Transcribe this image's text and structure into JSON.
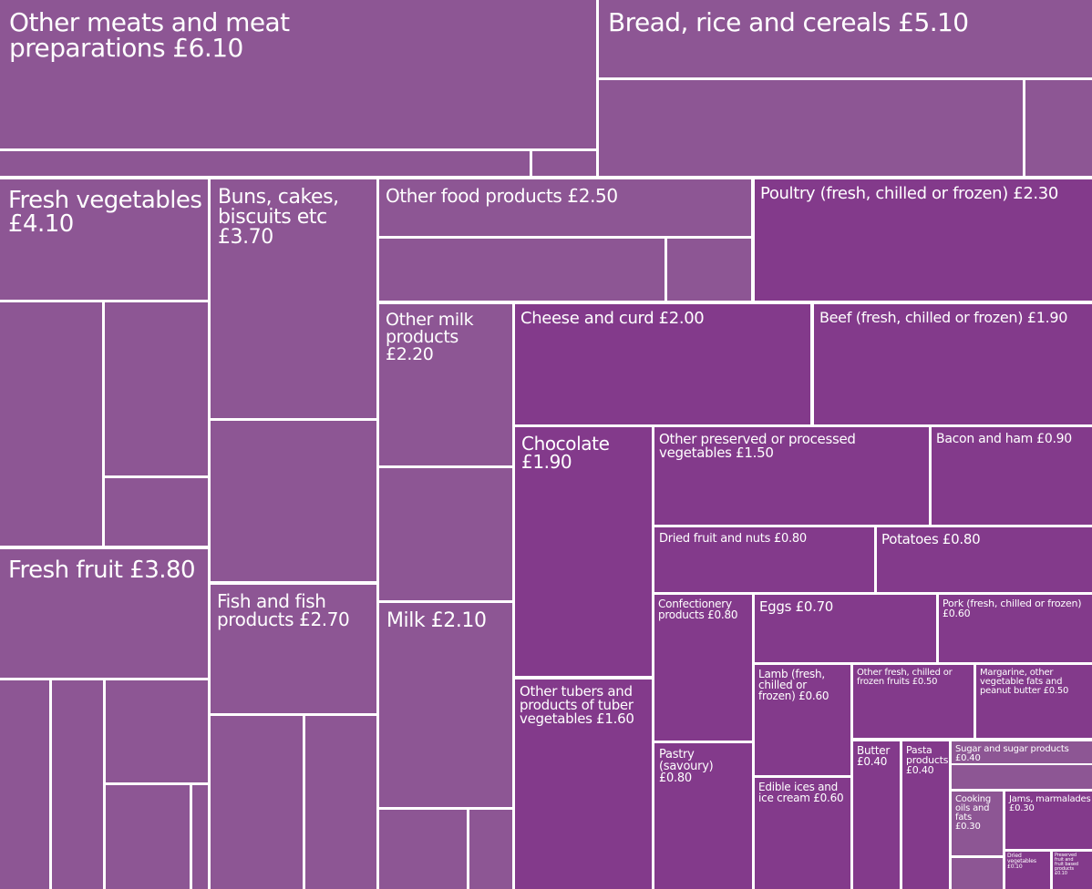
{
  "chart_data": {
    "type": "treemap",
    "currency": "£",
    "colors": {
      "group": "#8d5694",
      "single": "#833a8b",
      "border": "#ffffff"
    },
    "items": [
      {
        "name": "Other meats and meat preparations",
        "value": 6.1
      },
      {
        "name": "Bread, rice and cereals",
        "value": 5.1
      },
      {
        "name": "Fresh vegetables",
        "value": 4.1
      },
      {
        "name": "Fresh fruit",
        "value": 3.8
      },
      {
        "name": "Buns, cakes, biscuits etc",
        "value": 3.7
      },
      {
        "name": "Fish and fish products",
        "value": 2.7
      },
      {
        "name": "Other food products",
        "value": 2.5
      },
      {
        "name": "Poultry (fresh, chilled or frozen)",
        "value": 2.3
      },
      {
        "name": "Other milk products",
        "value": 2.2
      },
      {
        "name": "Milk",
        "value": 2.1
      },
      {
        "name": "Cheese and curd",
        "value": 2.0
      },
      {
        "name": "Beef (fresh, chilled or frozen)",
        "value": 1.9
      },
      {
        "name": "Chocolate",
        "value": 1.9
      },
      {
        "name": "Other tubers and products of tuber vegetables",
        "value": 1.6
      },
      {
        "name": "Other preserved or processed vegetables",
        "value": 1.5
      },
      {
        "name": "Bacon and ham",
        "value": 0.9
      },
      {
        "name": "Dried fruit and nuts",
        "value": 0.8
      },
      {
        "name": "Potatoes",
        "value": 0.8
      },
      {
        "name": "Confectionery products",
        "value": 0.8
      },
      {
        "name": "Pastry (savoury)",
        "value": 0.8
      },
      {
        "name": "Eggs",
        "value": 0.7
      },
      {
        "name": "Pork (fresh, chilled or frozen)",
        "value": 0.6
      },
      {
        "name": "Lamb (fresh, chilled or frozen)",
        "value": 0.6
      },
      {
        "name": "Edible ices and ice cream",
        "value": 0.6
      },
      {
        "name": "Other fresh, chilled or frozen fruits",
        "value": 0.5
      },
      {
        "name": "Margarine, other vegetable fats and peanut butter",
        "value": 0.5
      },
      {
        "name": "Butter",
        "value": 0.4
      },
      {
        "name": "Pasta products",
        "value": 0.4
      },
      {
        "name": "Sugar and sugar products",
        "value": 0.4
      },
      {
        "name": "Cooking oils and fats",
        "value": 0.3
      },
      {
        "name": "Jams, marmalades",
        "value": 0.3
      },
      {
        "name": "Dried vegetables",
        "value": 0.1
      },
      {
        "name": "Preserved fruit and fruit based products",
        "value": 0.1
      }
    ]
  }
}
